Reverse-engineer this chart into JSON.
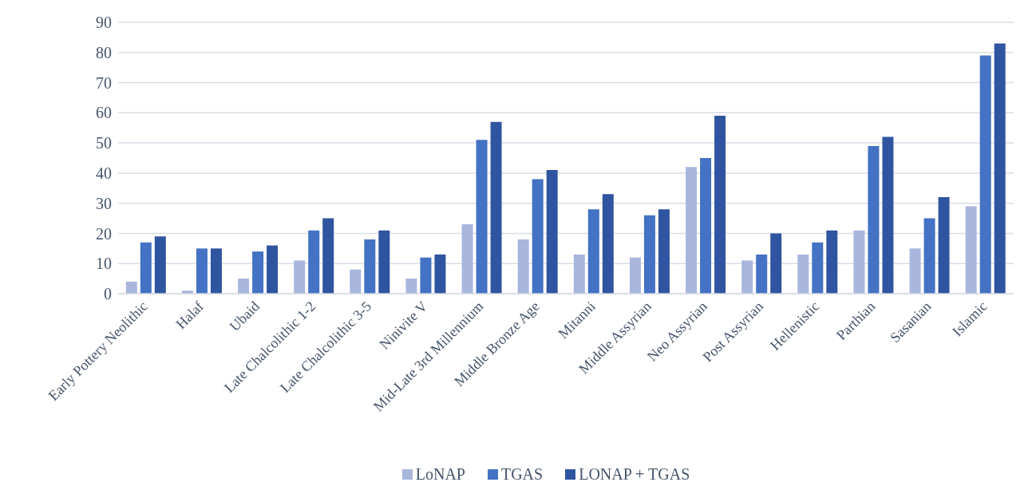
{
  "chart_data": {
    "type": "bar",
    "categories": [
      "Early Pottery Neolithic",
      "Halaf",
      "Ubaid",
      "Late Chalcolithic 1-2",
      "Late Chalcolithic 3-5",
      "Ninivite V",
      "Mid-Late 3rd Millennium",
      "Middle Bronze Age",
      "Mitanni",
      "Middle Assyrian",
      "Neo Assyrian",
      "Post Assyrian",
      "Hellenistic",
      "Parthian",
      "Sasanian",
      "Islamic"
    ],
    "series": [
      {
        "name": "LoNAP",
        "color": "#a9b6dc",
        "values": [
          4,
          1,
          5,
          11,
          8,
          5,
          23,
          18,
          13,
          12,
          42,
          11,
          13,
          21,
          15,
          29
        ]
      },
      {
        "name": "TGAS",
        "color": "#4472c4",
        "values": [
          17,
          15,
          14,
          21,
          18,
          12,
          51,
          38,
          28,
          26,
          45,
          13,
          17,
          49,
          25,
          79
        ]
      },
      {
        "name": "LONAP + TGAS",
        "color": "#2f55a0",
        "values": [
          19,
          15,
          16,
          25,
          21,
          13,
          57,
          41,
          33,
          28,
          59,
          20,
          21,
          52,
          32,
          83
        ]
      }
    ],
    "ylim": [
      0,
      90
    ],
    "yticks": [
      0,
      10,
      20,
      30,
      40,
      50,
      60,
      70,
      80,
      90
    ],
    "grid": "y",
    "legend": "bottom"
  }
}
